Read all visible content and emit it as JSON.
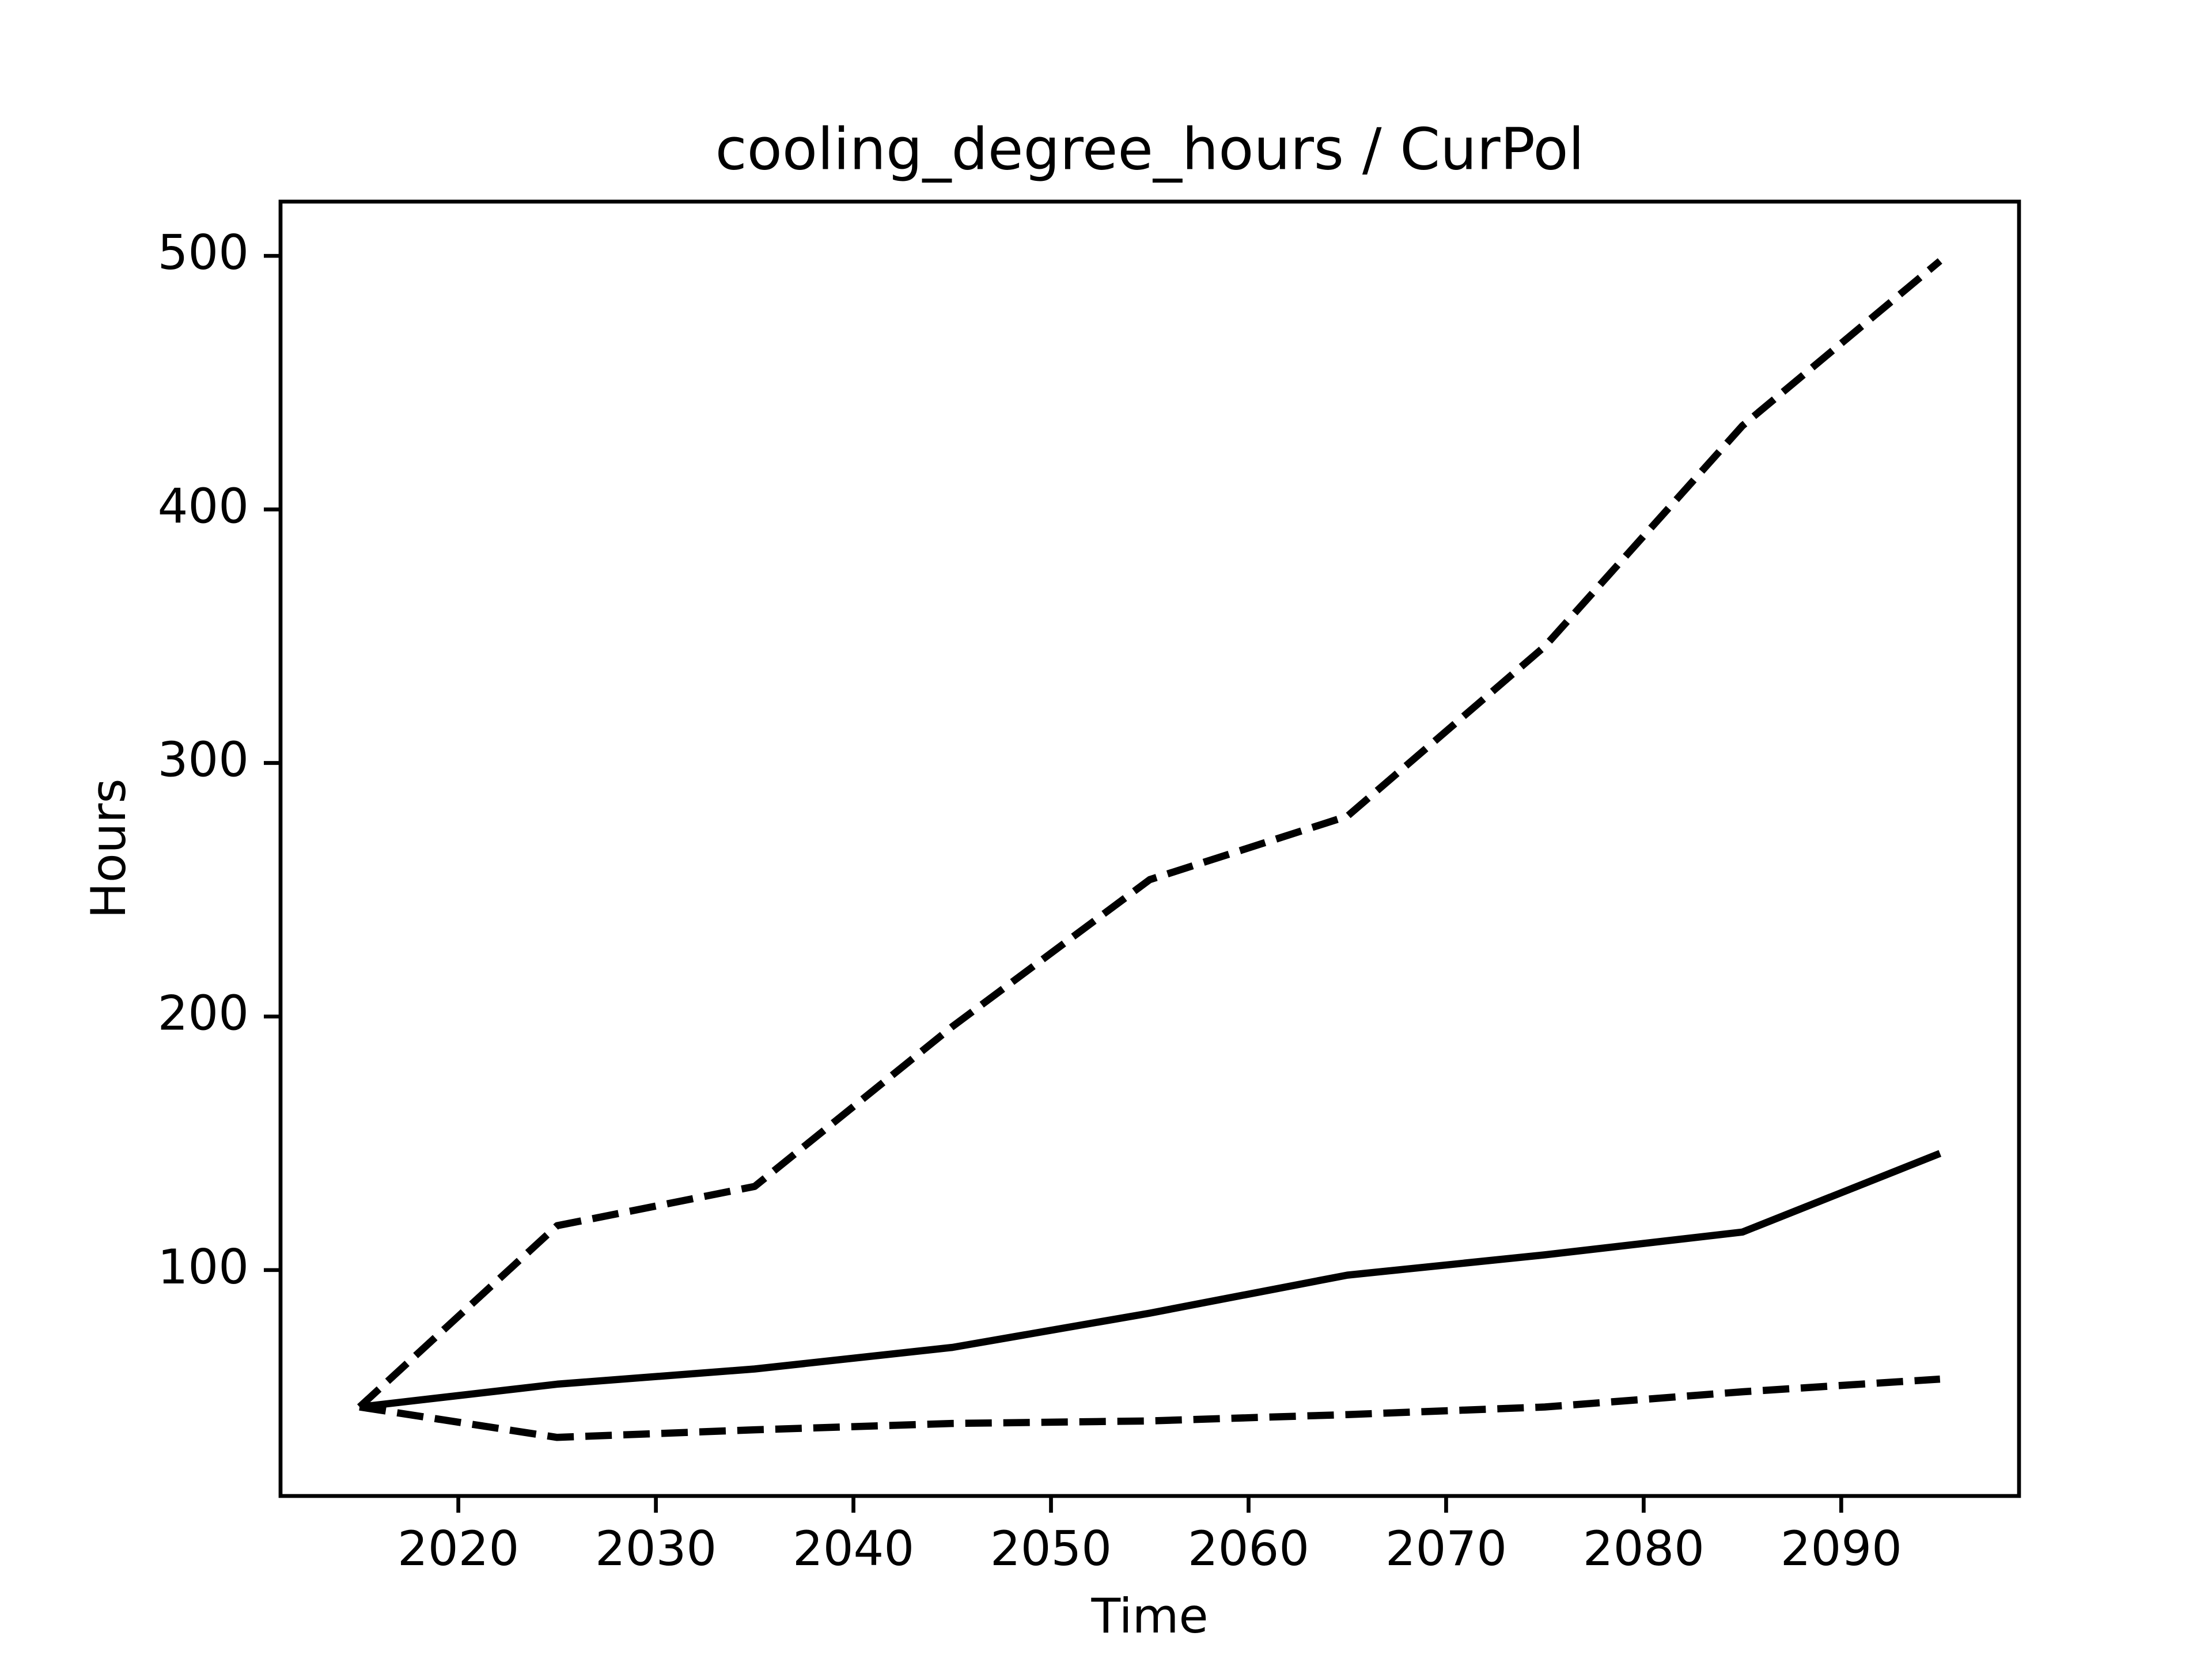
{
  "chart_data": {
    "type": "line",
    "title": "cooling_degree_hours / CurPol",
    "x_label": "Time",
    "y_label": "Hours",
    "x": [
      2015,
      2025,
      2035,
      2045,
      2055,
      2065,
      2075,
      2085,
      2095
    ],
    "series": [
      {
        "color": "#000000",
        "linestyle": "solid",
        "values": [
          46,
          55,
          61,
          69.5,
          83,
          98,
          106,
          115,
          146
        ]
      },
      {
        "color": "#000000",
        "linestyle": "dashed",
        "values": [
          46,
          117.5,
          133,
          196,
          254,
          279,
          346,
          433,
          498
        ]
      },
      {
        "color": "#000000",
        "linestyle": "dashed",
        "values": [
          46,
          34,
          37,
          39.5,
          40.5,
          43,
          46,
          52,
          57
        ]
      }
    ],
    "xlim": [
      2011,
      2099
    ],
    "xticks": [
      2020,
      2030,
      2040,
      2050,
      2060,
      2070,
      2080,
      2090
    ],
    "ylim": [
      10.9,
      521.4
    ],
    "yticks": [
      100,
      200,
      300,
      400,
      500
    ],
    "grid": false
  }
}
